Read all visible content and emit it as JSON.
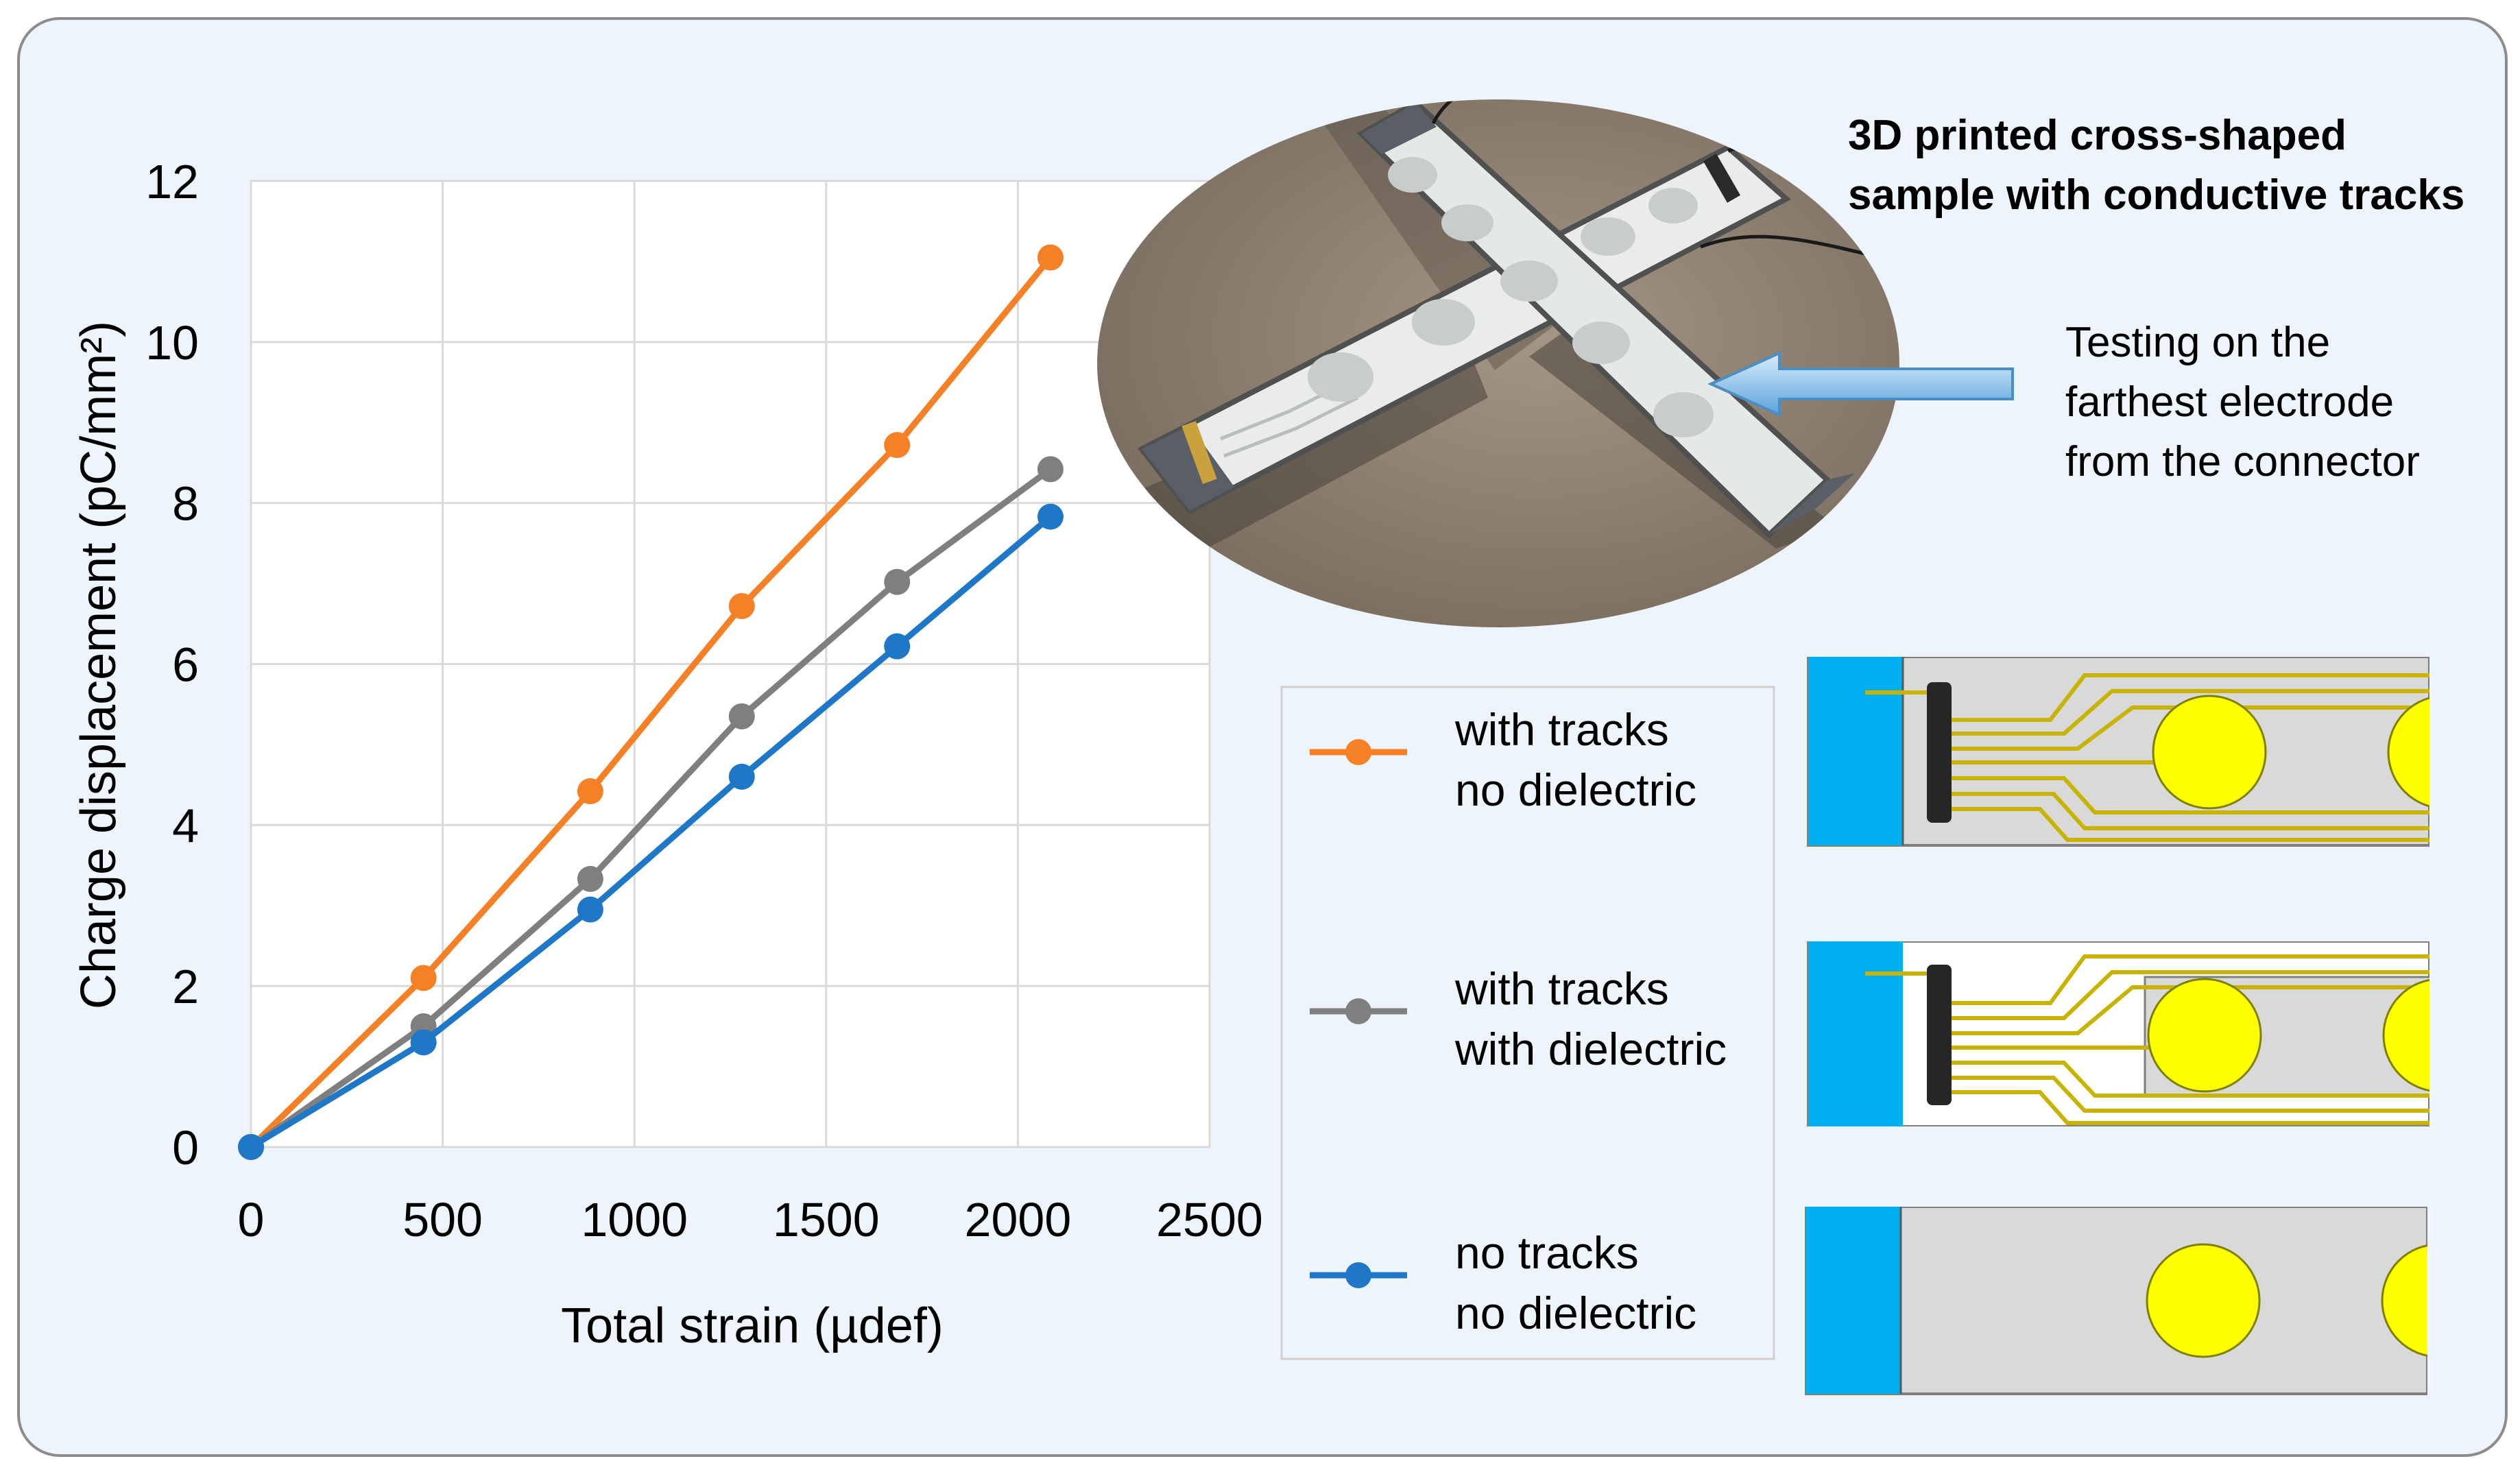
{
  "chart_data": {
    "type": "line",
    "title": "",
    "xlabel": "Total strain (µdef)",
    "ylabel": "Charge displacement  (pC/mm²)",
    "xlim": [
      0,
      2500
    ],
    "ylim": [
      0,
      12
    ],
    "xticks": [
      "0",
      "500",
      "1000",
      "1500",
      "2000",
      "2500"
    ],
    "yticks": [
      "0",
      "2",
      "4",
      "6",
      "8",
      "10",
      "12"
    ],
    "grid": true,
    "x": [
      0,
      450,
      885,
      1280,
      1685,
      2085
    ],
    "series": [
      {
        "name": "with tracks no dielectric",
        "legend_lines": [
          "with tracks",
          "no dielectric"
        ],
        "color": "#F58025",
        "values": [
          0,
          2.1,
          4.42,
          6.72,
          8.72,
          11.05
        ]
      },
      {
        "name": "with tracks with dielectric",
        "legend_lines": [
          "with tracks",
          "with dielectric"
        ],
        "color": "#7F7F7F",
        "values": [
          0,
          1.5,
          3.33,
          5.35,
          7.02,
          8.42
        ]
      },
      {
        "name": "no tracks no dielectric",
        "legend_lines": [
          "no tracks",
          "no dielectric"
        ],
        "color": "#1F77C8",
        "values": [
          0,
          1.3,
          2.95,
          4.6,
          6.22,
          7.83
        ]
      }
    ]
  },
  "annotations": {
    "photo_title_lines": [
      "3D printed cross-shaped",
      "sample with conductive tracks"
    ],
    "arrow_text_lines": [
      "Testing on the",
      "farthest electrode",
      "from the connector"
    ]
  },
  "colors": {
    "panel_bg": "#EEF4FB",
    "panel_border": "#8C8C8C",
    "connector_blue": "#00B0F0",
    "electrode_yellow": "#FFFF00",
    "track_gold": "#C8B400",
    "arrow_blue": "#6AB0E0"
  }
}
